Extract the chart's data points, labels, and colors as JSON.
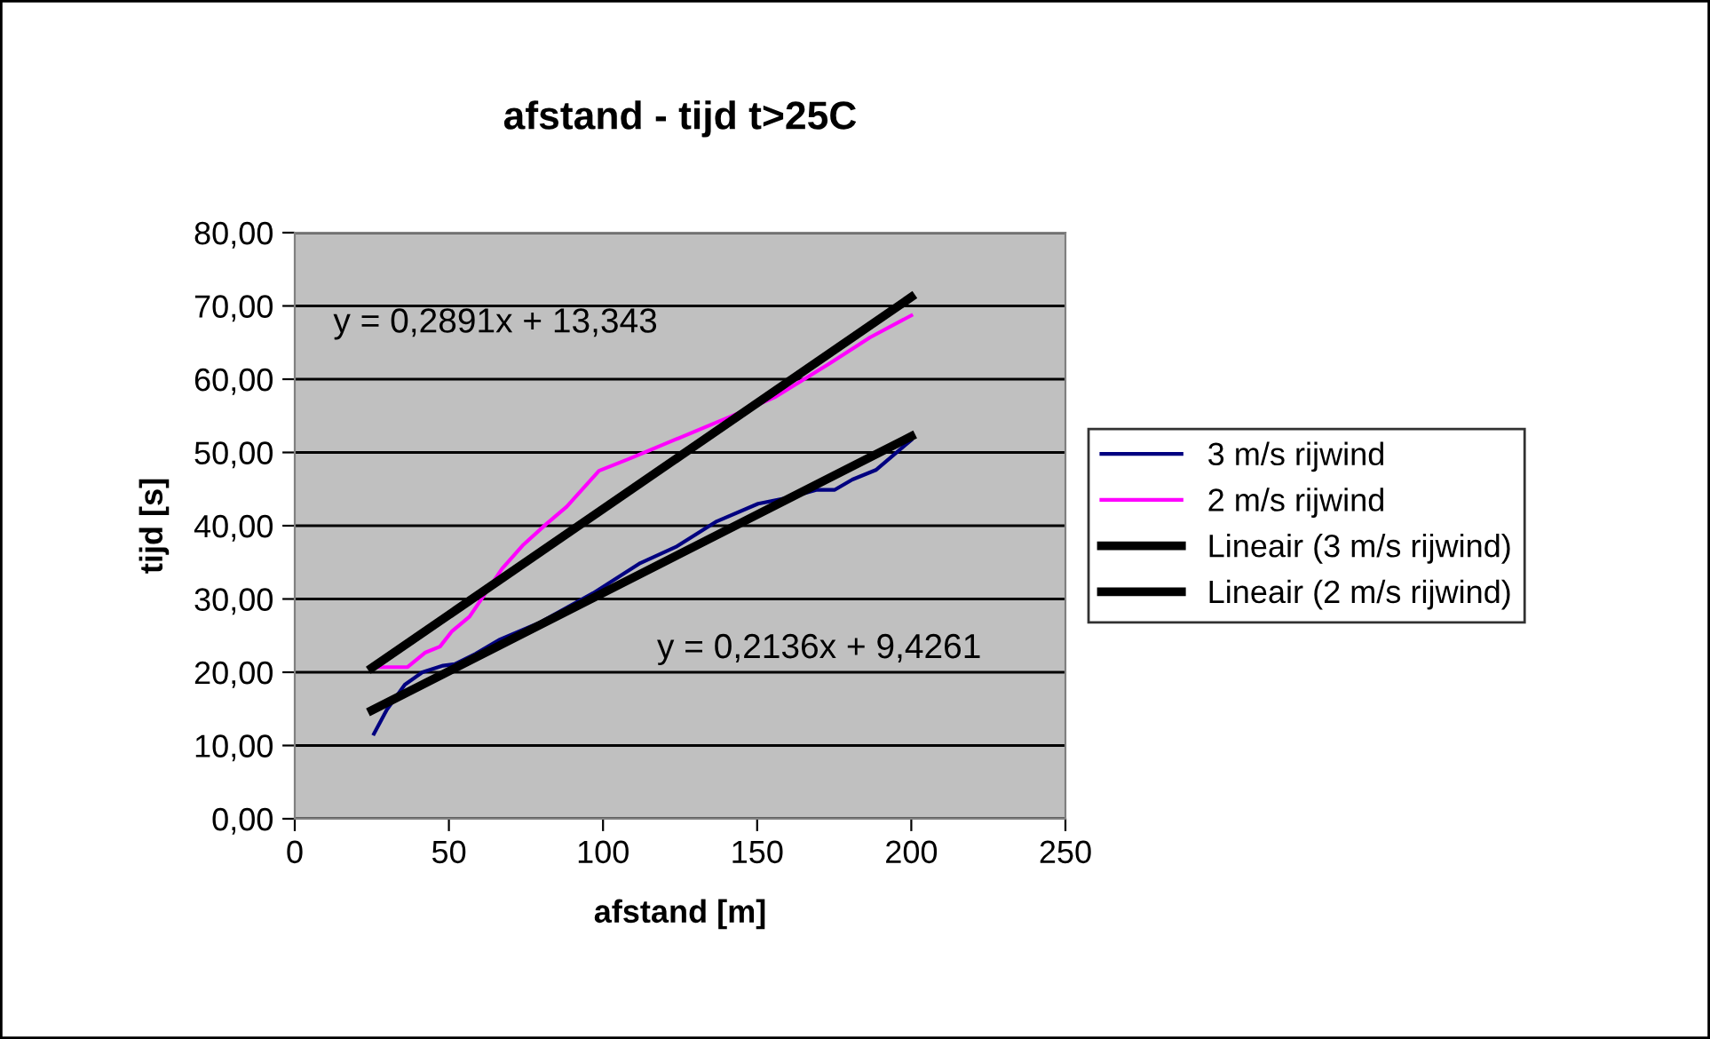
{
  "chart_data": {
    "type": "line",
    "title": "afstand - tijd t>25C",
    "xlabel": "afstand [m]",
    "ylabel": "tijd [s]",
    "series": [
      {
        "name": "3 m/s rijwind",
        "color": "#000080",
        "x": [
          25.7,
          29.9,
          35.7,
          41.4,
          48.1,
          51.9,
          58.6,
          66.2,
          79.6,
          96.8,
          112.1,
          123.6,
          136.9,
          150.3,
          159.9,
          169.4,
          175.2,
          180.9,
          188.5,
          200
        ],
        "values": [
          11.6,
          14.9,
          18.3,
          20.0,
          20.9,
          21.1,
          22.5,
          24.4,
          26.8,
          30.8,
          34.9,
          37.1,
          40.6,
          43.0,
          43.8,
          44.9,
          44.9,
          46.3,
          47.6,
          51.7
        ]
      },
      {
        "name": "2 m/s rijwind",
        "color": "#ff00ff",
        "x": [
          26.1,
          36.6,
          42.4,
          47.1,
          51,
          56.7,
          67.2,
          73.9,
          81.5,
          88.2,
          98.7,
          108.3,
          119.7,
          140.8,
          156,
          173.3,
          186.6,
          200
        ],
        "values": [
          20.7,
          20.7,
          22.7,
          23.5,
          25.6,
          27.6,
          34.1,
          37.3,
          40.2,
          42.6,
          47.5,
          49.1,
          51.1,
          54.8,
          57.6,
          62.1,
          65.7,
          68.7
        ]
      },
      {
        "name": "Lineair (3 m/s rijwind)",
        "color": "#000000",
        "x": [
          25,
          200
        ],
        "values": [
          14.8,
          52.2
        ]
      },
      {
        "name": "Lineair (2 m/s rijwind)",
        "color": "#000000",
        "x": [
          25,
          200
        ],
        "values": [
          20.6,
          71.2
        ]
      }
    ],
    "annotations": [
      "y = 0,2891x + 13,343",
      "y = 0,2136x + 9,4261"
    ],
    "xlim": [
      0,
      250
    ],
    "xticks": [
      0,
      50,
      100,
      150,
      200,
      250
    ],
    "ylim": [
      0,
      80
    ],
    "yticks": [
      {
        "value": 0,
        "label": "0,00"
      },
      {
        "value": 10,
        "label": "10,00"
      },
      {
        "value": 20,
        "label": "20,00"
      },
      {
        "value": 30,
        "label": "30,00"
      },
      {
        "value": 40,
        "label": "40,00"
      },
      {
        "value": 50,
        "label": "50,00"
      },
      {
        "value": 60,
        "label": "60,00"
      },
      {
        "value": 70,
        "label": "70,00"
      },
      {
        "value": 80,
        "label": "80,00"
      }
    ],
    "grid": "y",
    "legend": "right",
    "marker": "none",
    "line_style": "solid"
  }
}
